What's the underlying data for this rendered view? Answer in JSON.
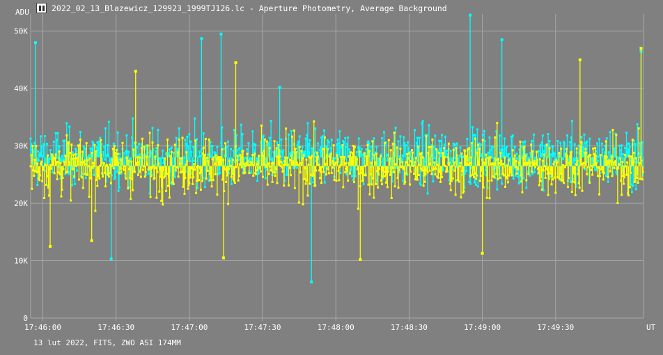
{
  "window": {
    "title": "2022_02_13_Blazewicz_129923_1999TJ126.lc - Aperture Photometry, Average Background",
    "footer": "13 lut 2022, FITS, ZWO ASI 174MM"
  },
  "colors": {
    "background": "#808080",
    "grid": "#a8a8a8",
    "series_background": "#00ffff",
    "series_main": "#ffff00"
  },
  "chart_data": {
    "type": "scatter",
    "xlabel": "UT",
    "ylabel": "ADU",
    "x_unit": "time (UT)",
    "xlim": [
      "17:45:55",
      "17:50:06"
    ],
    "ylim": [
      0,
      53000
    ],
    "x_ticks": [
      "17:46:00",
      "17:46:30",
      "17:47:00",
      "17:47:30",
      "17:48:00",
      "17:48:30",
      "17:49:00",
      "17:49:30"
    ],
    "y_ticks": [
      {
        "value": 0,
        "label": "0"
      },
      {
        "value": 10000,
        "label": "10K"
      },
      {
        "value": 20000,
        "label": "20K"
      },
      {
        "value": 30000,
        "label": "30K"
      },
      {
        "value": 40000,
        "label": "40K"
      },
      {
        "value": 50000,
        "label": "50K"
      }
    ],
    "grid": true,
    "points_style": "dots with vertical drop lines to series mean",
    "series": [
      {
        "color": "#00ffff",
        "mean": 28000,
        "typical_range": [
          19000,
          38000
        ],
        "extremes": [
          {
            "x": "17:45:57",
            "y": 48000
          },
          {
            "x": "17:46:28",
            "y": 10300
          },
          {
            "x": "17:47:05",
            "y": 48700
          },
          {
            "x": "17:47:13",
            "y": 49500
          },
          {
            "x": "17:47:37",
            "y": 40200
          },
          {
            "x": "17:47:50",
            "y": 6300
          },
          {
            "x": "17:48:55",
            "y": 52800
          },
          {
            "x": "17:49:08",
            "y": 48500
          },
          {
            "x": "17:50:05",
            "y": 46500
          }
        ]
      },
      {
        "color": "#ffff00",
        "mean": 26500,
        "typical_range": [
          17000,
          36000
        ],
        "extremes": [
          {
            "x": "17:46:03",
            "y": 12500
          },
          {
            "x": "17:46:20",
            "y": 13500
          },
          {
            "x": "17:46:38",
            "y": 43000
          },
          {
            "x": "17:47:14",
            "y": 10500
          },
          {
            "x": "17:47:19",
            "y": 44500
          },
          {
            "x": "17:48:10",
            "y": 10200
          },
          {
            "x": "17:49:00",
            "y": 11300
          },
          {
            "x": "17:49:40",
            "y": 45000
          },
          {
            "x": "17:50:05",
            "y": 47000
          }
        ]
      }
    ]
  }
}
